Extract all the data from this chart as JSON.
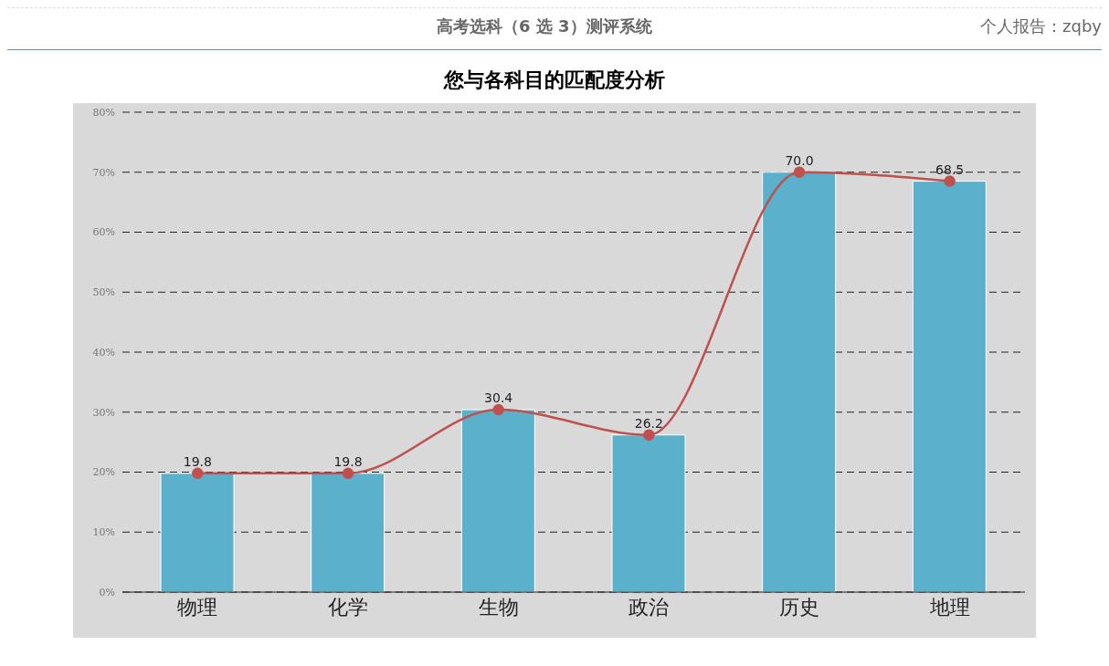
{
  "chart_data": {
    "type": "bar",
    "title": "您与各科目的匹配度分析",
    "annotations": [
      "高考选科（6 选 3）测评系统",
      "个人报告：zqby"
    ],
    "categories": [
      "物理",
      "化学",
      "生物",
      "政治",
      "历史",
      "地理"
    ],
    "series": [
      {
        "color": "#5bb0cb",
        "values": [
          19.8,
          19.8,
          30.4,
          26.2,
          70.0,
          68.5
        ]
      },
      {
        "type": "line",
        "color": "#c0504d",
        "values": [
          19.8,
          19.8,
          30.4,
          26.2,
          70.0,
          68.5
        ],
        "value_labels": [
          "19.8",
          "19.8",
          "30.4",
          "26.2",
          "70.0",
          "68.5"
        ]
      }
    ],
    "ylim": [
      0,
      80
    ],
    "yticks": [
      {
        "value": 0,
        "label": "0%"
      },
      {
        "value": 10,
        "label": "10%"
      },
      {
        "value": 20,
        "label": "20%"
      },
      {
        "value": 30,
        "label": "30%"
      },
      {
        "value": 40,
        "label": "40%"
      },
      {
        "value": 50,
        "label": "50%"
      },
      {
        "value": 60,
        "label": "60%"
      },
      {
        "value": 70,
        "label": "70%"
      },
      {
        "value": 80,
        "label": "80%"
      }
    ],
    "grid": "y",
    "marker": "circle",
    "line_style": "solid",
    "legend": false
  }
}
